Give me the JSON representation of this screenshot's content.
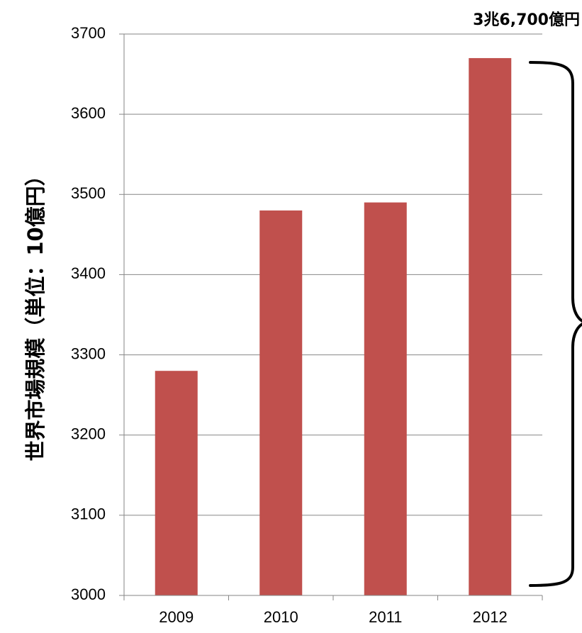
{
  "chart_data": {
    "type": "bar",
    "categories": [
      "2009",
      "2010",
      "2011",
      "2012"
    ],
    "values": [
      3280,
      3480,
      3490,
      3670
    ],
    "title": "",
    "xlabel": "",
    "ylabel": "世界市場規模（単位：10億円）",
    "ylim": [
      3000,
      3700
    ],
    "yticks": [
      3000,
      3100,
      3200,
      3300,
      3400,
      3500,
      3600,
      3700
    ],
    "grid": true,
    "annotation": "3兆6,700億円",
    "colors": {
      "bar": "#c0504d",
      "grid": "#868686",
      "axis": "#868686"
    }
  }
}
